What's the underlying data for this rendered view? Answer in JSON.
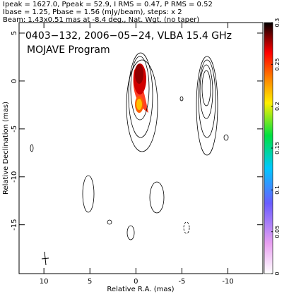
{
  "chart_data": {
    "type": "contour",
    "header": [
      "Ipeak = 1627.0, Ppeak = 52.9, I RMS = 0.47, P RMS = 0.52",
      "Ibase = 1.25, Pbase = 1.56 (mJy/beam), steps: x 2",
      "Beam: 1.43x0.51 mas at -8.4 deg., Nat. Wgt. (no taper)"
    ],
    "annotations": [
      "0403−132, 2006−05−24, VLBA 15.4 GHz",
      "MOJAVE Program"
    ],
    "xlabel": "Relative R.A. (mas)",
    "ylabel": "Relative Declination (mas)",
    "xlim": [
      12.7,
      -13.8
    ],
    "xticks": [
      10,
      5,
      0,
      -5,
      -10
    ],
    "ylim": [
      -20.1,
      6.1
    ],
    "yticks": [
      5,
      0,
      -5,
      -10,
      -15
    ],
    "colorbar_lim": [
      0,
      0.3
    ],
    "colorbar_ticks": [
      0,
      0.05,
      0.1,
      0.15,
      0.2,
      0.25,
      0.3
    ]
  }
}
